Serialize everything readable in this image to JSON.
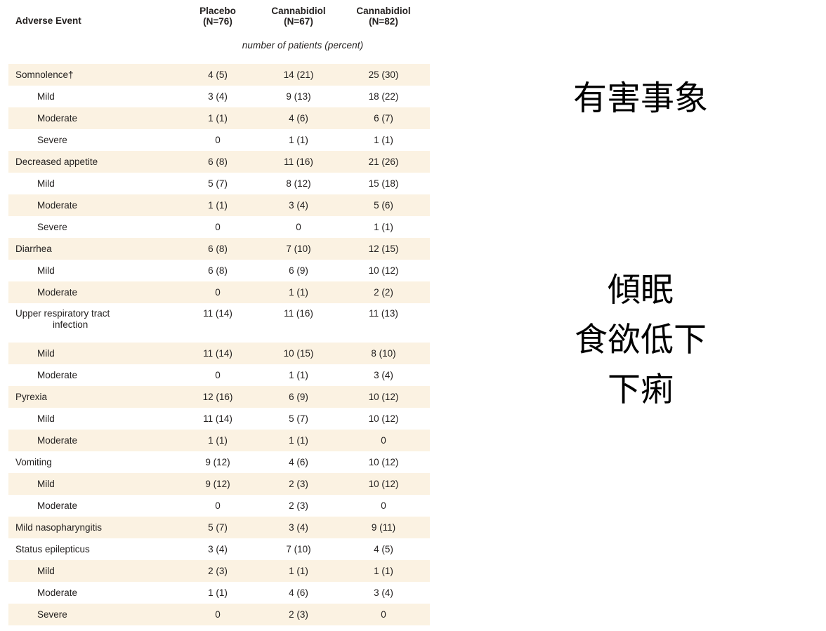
{
  "table": {
    "columns": [
      {
        "label": "Adverse Event"
      },
      {
        "line1": "Placebo",
        "line2": "(N=76)"
      },
      {
        "line1": "Cannabidiol",
        "line2": "(N=67)"
      },
      {
        "line1": "Cannabidiol",
        "line2": "(N=82)"
      }
    ],
    "subheader": "number of patients (percent)",
    "rows": [
      {
        "label": "Somnolence†",
        "indent": 0,
        "values": [
          "4 (5)",
          "14 (21)",
          "25 (30)"
        ]
      },
      {
        "label": "Mild",
        "indent": 1,
        "values": [
          "3 (4)",
          "9 (13)",
          "18 (22)"
        ]
      },
      {
        "label": "Moderate",
        "indent": 1,
        "values": [
          "1 (1)",
          "4 (6)",
          "6 (7)"
        ]
      },
      {
        "label": "Severe",
        "indent": 1,
        "values": [
          "0",
          "1 (1)",
          "1 (1)"
        ]
      },
      {
        "label": "Decreased appetite",
        "indent": 0,
        "values": [
          "6 (8)",
          "11 (16)",
          "21 (26)"
        ]
      },
      {
        "label": "Mild",
        "indent": 1,
        "values": [
          "5 (7)",
          "8 (12)",
          "15 (18)"
        ]
      },
      {
        "label": "Moderate",
        "indent": 1,
        "values": [
          "1 (1)",
          "3 (4)",
          "5 (6)"
        ]
      },
      {
        "label": "Severe",
        "indent": 1,
        "values": [
          "0",
          "0",
          "1 (1)"
        ]
      },
      {
        "label": "Diarrhea",
        "indent": 0,
        "values": [
          "6 (8)",
          "7 (10)",
          "12 (15)"
        ]
      },
      {
        "label": "Mild",
        "indent": 1,
        "values": [
          "6 (8)",
          "6 (9)",
          "10 (12)"
        ]
      },
      {
        "label": "Moderate",
        "indent": 1,
        "values": [
          "0",
          "1 (1)",
          "2 (2)"
        ]
      },
      {
        "label": "Upper respiratory tract",
        "label_line2": "infection",
        "indent": 0,
        "values": [
          "11 (14)",
          "11 (16)",
          "11 (13)"
        ]
      },
      {
        "label": "Mild",
        "indent": 1,
        "values": [
          "11 (14)",
          "10 (15)",
          "8 (10)"
        ]
      },
      {
        "label": "Moderate",
        "indent": 1,
        "values": [
          "0",
          "1 (1)",
          "3 (4)"
        ]
      },
      {
        "label": "Pyrexia",
        "indent": 0,
        "values": [
          "12 (16)",
          "6 (9)",
          "10 (12)"
        ]
      },
      {
        "label": "Mild",
        "indent": 1,
        "values": [
          "11 (14)",
          "5 (7)",
          "10 (12)"
        ]
      },
      {
        "label": "Moderate",
        "indent": 1,
        "values": [
          "1 (1)",
          "1 (1)",
          "0"
        ]
      },
      {
        "label": "Vomiting",
        "indent": 0,
        "values": [
          "9 (12)",
          "4 (6)",
          "10 (12)"
        ]
      },
      {
        "label": "Mild",
        "indent": 1,
        "values": [
          "9 (12)",
          "2 (3)",
          "10 (12)"
        ]
      },
      {
        "label": "Moderate",
        "indent": 1,
        "values": [
          "0",
          "2 (3)",
          "0"
        ]
      },
      {
        "label": "Mild nasopharyngitis",
        "indent": 0,
        "values": [
          "5 (7)",
          "3 (4)",
          "9 (11)"
        ]
      },
      {
        "label": "Status epilepticus",
        "indent": 0,
        "values": [
          "3 (4)",
          "7 (10)",
          "4 (5)"
        ]
      },
      {
        "label": "Mild",
        "indent": 1,
        "values": [
          "2 (3)",
          "1 (1)",
          "1 (1)"
        ]
      },
      {
        "label": "Moderate",
        "indent": 1,
        "values": [
          "1 (1)",
          "4 (6)",
          "3 (4)"
        ]
      },
      {
        "label": "Severe",
        "indent": 1,
        "values": [
          "0",
          "2 (3)",
          "0"
        ]
      }
    ]
  },
  "annotations": {
    "title": "有害事象",
    "terms": [
      "傾眠",
      "食欲低下",
      "下痢"
    ]
  },
  "colors": {
    "row_stripe": "#fbf2e2",
    "text": "#242120",
    "annotation_text": "#000000",
    "background": "#ffffff"
  }
}
